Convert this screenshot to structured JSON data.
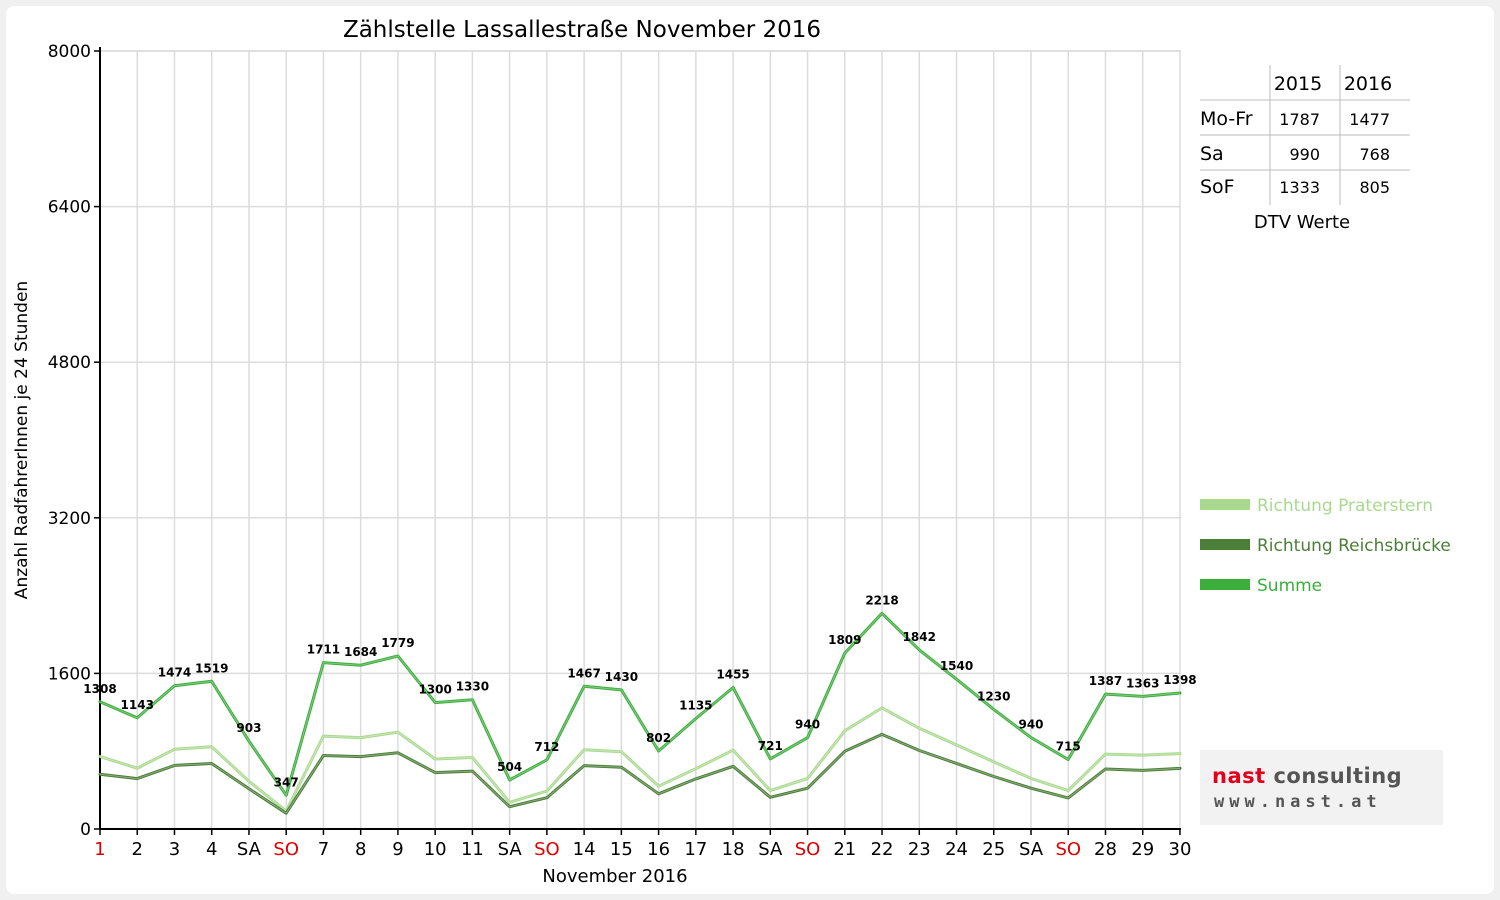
{
  "chart_data": {
    "type": "line",
    "title": "Zählstelle Lassallestraße November 2016",
    "xlabel": "November 2016",
    "ylabel": "Anzahl RadfahrerInnen je 24 Stunden",
    "ylim": [
      0,
      8000
    ],
    "yticks": [
      "0",
      "1600",
      "3200",
      "4800",
      "6400",
      "8000"
    ],
    "grid": true,
    "legend_position": "right",
    "categories": [
      "1",
      "2",
      "3",
      "4",
      "SA",
      "SO",
      "7",
      "8",
      "9",
      "10",
      "11",
      "SA",
      "SO",
      "14",
      "15",
      "16",
      "17",
      "18",
      "SA",
      "SO",
      "21",
      "22",
      "23",
      "24",
      "25",
      "SA",
      "SO",
      "28",
      "29",
      "30"
    ],
    "red_categories": [
      0,
      5,
      12,
      19,
      26
    ],
    "series": [
      {
        "name": "Richtung Praterstern",
        "color": "#a9d98f",
        "values": [
          745,
          625,
          820,
          845,
          490,
          185,
          955,
          940,
          995,
          720,
          735,
          275,
          390,
          815,
          795,
          440,
          620,
          810,
          395,
          520,
          1010,
          1245,
          1035,
          865,
          690,
          520,
          395,
          770,
          760,
          775
        ]
      },
      {
        "name": "Richtung Reichsbrücke",
        "color": "#4b7f37",
        "values": [
          563,
          518,
          654,
          674,
          413,
          162,
          756,
          744,
          784,
          580,
          595,
          229,
          322,
          652,
          635,
          362,
          515,
          645,
          326,
          420,
          799,
          973,
          807,
          675,
          540,
          420,
          320,
          617,
          603,
          623
        ]
      },
      {
        "name": "Summe",
        "color": "#3cae3c",
        "values": [
          1308,
          1143,
          1474,
          1519,
          903,
          347,
          1711,
          1684,
          1779,
          1300,
          1330,
          504,
          712,
          1467,
          1430,
          802,
          1135,
          1455,
          721,
          940,
          1809,
          2218,
          1842,
          1540,
          1230,
          940,
          715,
          1387,
          1363,
          1398
        ],
        "labels": [
          "1308",
          "1143",
          "1474",
          "1519",
          "903",
          "347",
          "1711",
          "1684",
          "1779",
          "1300",
          "1330",
          "504",
          "712",
          "1467",
          "1430",
          "802",
          "1135",
          "1455",
          "721",
          "940",
          "1809",
          "2218",
          "1842",
          "1540",
          "1230",
          "940",
          "715",
          "1387",
          "1363",
          "1398"
        ]
      }
    ]
  },
  "dtv_table": {
    "headers": [
      "",
      "2015",
      "2016"
    ],
    "rows": [
      {
        "label": "Mo-Fr",
        "v2015": "1787",
        "v2016": "1477"
      },
      {
        "label": "Sa",
        "v2015": "990",
        "v2016": "768"
      },
      {
        "label": "SoF",
        "v2015": "1333",
        "v2016": "805"
      }
    ],
    "caption": "DTV Werte"
  },
  "logo": {
    "brand_prefix": "nast ",
    "brand_suffix": "consulting",
    "url": "www.nast.at",
    "colors": {
      "prefix": "#e3001b",
      "suffix": "#555555"
    }
  }
}
